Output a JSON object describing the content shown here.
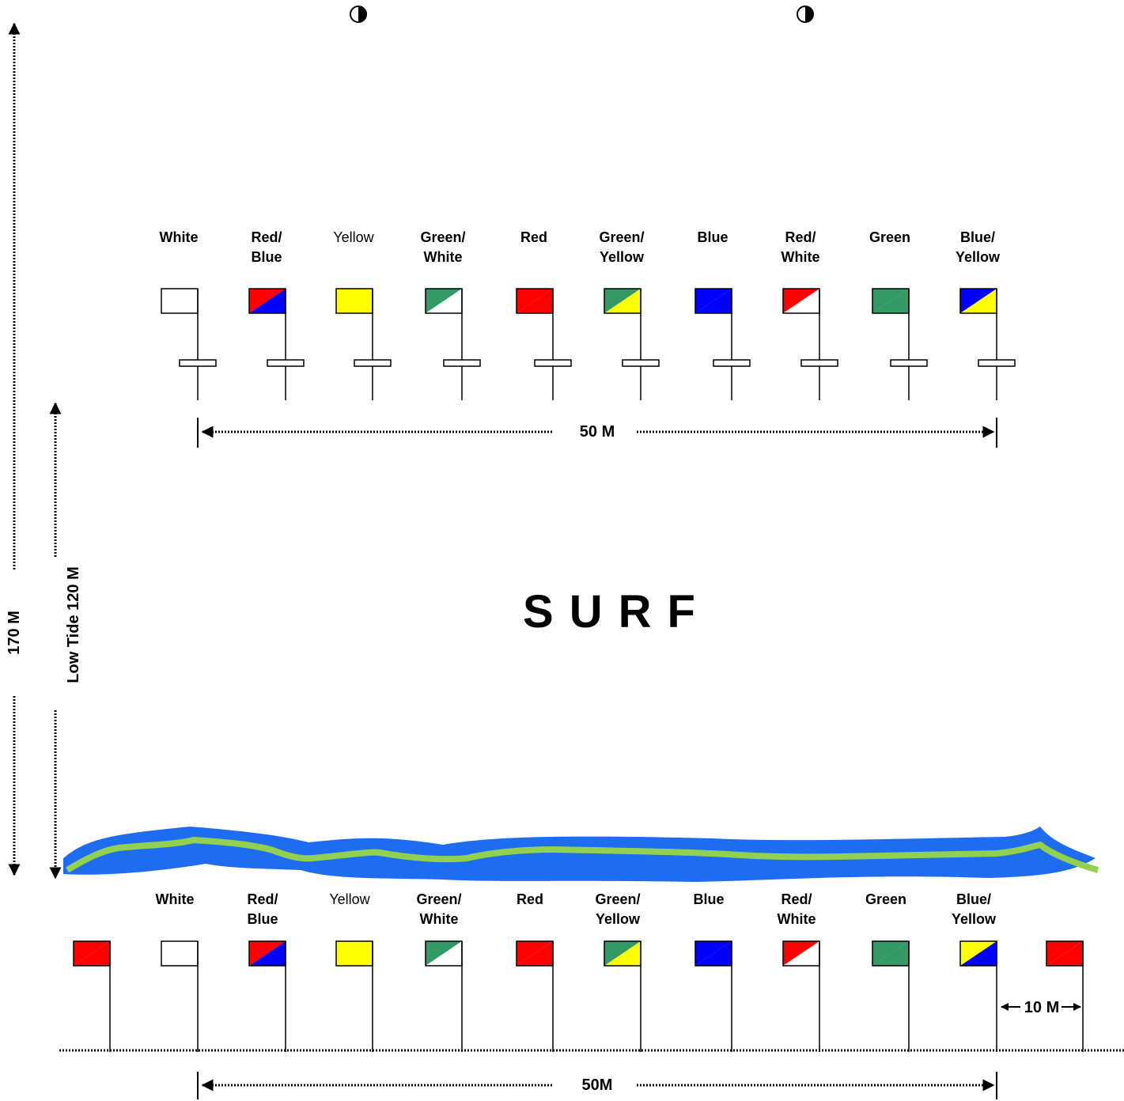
{
  "top_row": {
    "labels": [
      "White",
      "Red/ Blue",
      "Yellow",
      "Green/ White",
      "Red",
      "Green/ Yellow",
      "Blue",
      "Red/ White",
      "Green",
      "Blue/ Yellow"
    ]
  },
  "bottom_row": {
    "labels": [
      "White",
      "Red/ Blue",
      "Yellow",
      "Green/ White",
      "Red",
      "Green/ Yellow",
      "Blue",
      "Red/ White",
      "Green",
      "Blue/ Yellow"
    ]
  },
  "surf": "SURF",
  "dimensions": {
    "top_width": "50 M",
    "bottom_width": "50M",
    "spacing": "10 M",
    "low_tide": "Low Tide 120 M",
    "total": "170 M"
  }
}
